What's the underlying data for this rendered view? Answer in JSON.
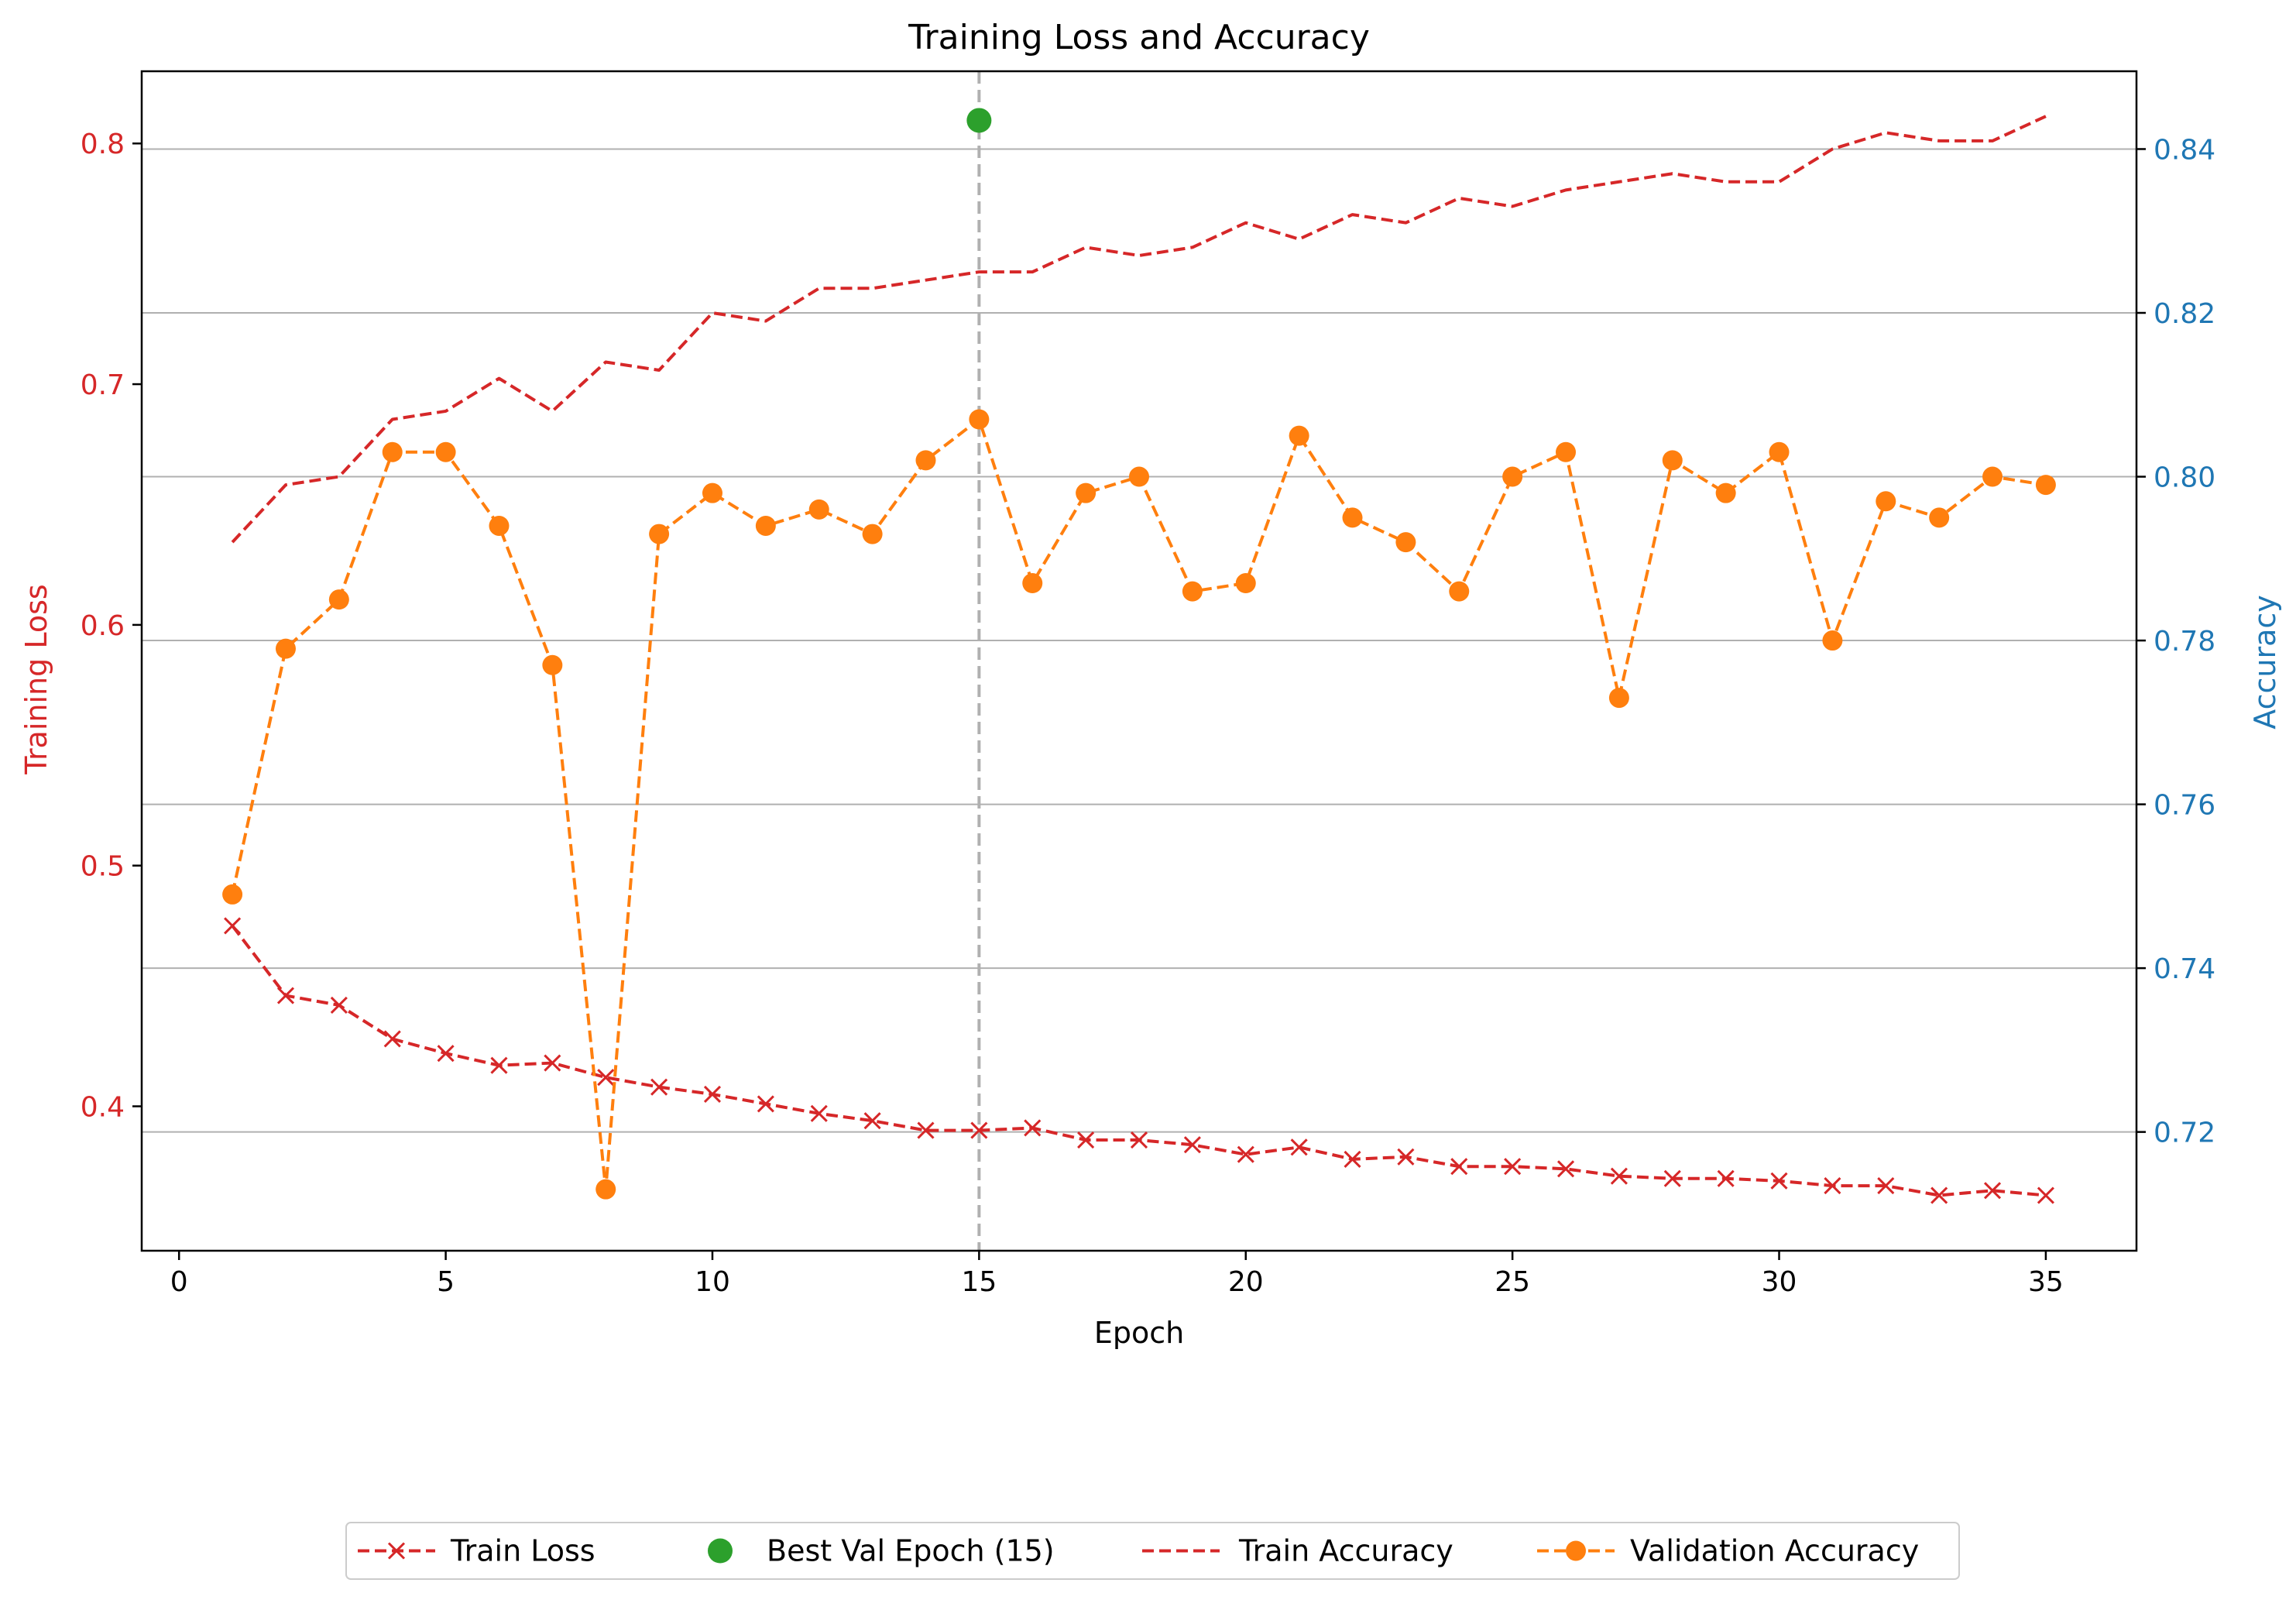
{
  "chart_data": {
    "type": "line",
    "title": "Training Loss and Accuracy",
    "xlabel": "Epoch",
    "ylabel_left": "Training Loss",
    "ylabel_right": "Accuracy",
    "xlim": [
      -0.7,
      36.7
    ],
    "ylim_left": [
      0.34,
      0.83
    ],
    "ylim_right": [
      0.7055,
      0.8495
    ],
    "x_ticks": [
      0,
      5,
      10,
      15,
      20,
      25,
      30,
      35
    ],
    "y_ticks_left": [
      0.4,
      0.5,
      0.6,
      0.7,
      0.8
    ],
    "y_ticks_right": [
      0.72,
      0.74,
      0.76,
      0.78,
      0.8,
      0.82,
      0.84
    ],
    "x_tick_labels": [
      "0",
      "5",
      "10",
      "15",
      "20",
      "25",
      "30",
      "35"
    ],
    "y_tick_labels_left": [
      "0.4",
      "0.5",
      "0.6",
      "0.7",
      "0.8"
    ],
    "y_tick_labels_right": [
      "0.72",
      "0.74",
      "0.76",
      "0.78",
      "0.80",
      "0.82",
      "0.84"
    ],
    "grid": "horizontal on right axis",
    "legend_position": "bottom-center, below plot",
    "x": [
      1,
      2,
      3,
      4,
      5,
      6,
      7,
      8,
      9,
      10,
      11,
      12,
      13,
      14,
      15,
      16,
      17,
      18,
      19,
      20,
      21,
      22,
      23,
      24,
      25,
      26,
      27,
      28,
      29,
      30,
      31,
      32,
      33,
      34,
      35
    ],
    "series": [
      {
        "name": "Train Loss",
        "axis": "left",
        "color": "#d62728",
        "marker": "x",
        "linestyle": "dashed",
        "values": [
          0.475,
          0.446,
          0.442,
          0.428,
          0.422,
          0.417,
          0.418,
          0.412,
          0.408,
          0.405,
          0.401,
          0.397,
          0.394,
          0.39,
          0.39,
          0.391,
          0.386,
          0.386,
          0.384,
          0.38,
          0.383,
          0.378,
          0.379,
          0.375,
          0.375,
          0.374,
          0.371,
          0.37,
          0.37,
          0.369,
          0.367,
          0.367,
          0.363,
          0.365,
          0.363
        ]
      },
      {
        "name": "Train Accuracy",
        "axis": "right",
        "color": "#d62728",
        "marker": "none",
        "linestyle": "dashed",
        "values": [
          0.792,
          0.799,
          0.8,
          0.807,
          0.808,
          0.812,
          0.808,
          0.814,
          0.813,
          0.82,
          0.819,
          0.823,
          0.823,
          0.824,
          0.825,
          0.825,
          0.828,
          0.827,
          0.828,
          0.831,
          0.829,
          0.832,
          0.831,
          0.834,
          0.833,
          0.835,
          0.836,
          0.837,
          0.836,
          0.836,
          0.84,
          0.842,
          0.841,
          0.841,
          0.844
        ]
      },
      {
        "name": "Validation Accuracy",
        "axis": "right",
        "color": "#ff7f0e",
        "marker": "o",
        "linestyle": "dashed",
        "values": [
          0.749,
          0.779,
          0.785,
          0.803,
          0.803,
          0.794,
          0.777,
          0.713,
          0.793,
          0.798,
          0.794,
          0.796,
          0.793,
          0.802,
          0.807,
          0.787,
          0.798,
          0.8,
          0.786,
          0.787,
          0.805,
          0.795,
          0.792,
          0.786,
          0.8,
          0.803,
          0.773,
          0.802,
          0.798,
          0.803,
          0.78,
          0.797,
          0.795,
          0.8,
          0.799
        ]
      }
    ],
    "best_val": {
      "name": "Best Val Epoch (15)",
      "epoch": 15,
      "accuracy": 0.8435,
      "color": "#2ca02c"
    },
    "colors": {
      "left_axis": "#d62728",
      "right_axis": "#1f77b4",
      "grid": "#b0b0b0",
      "vline": "#b0b0b0"
    }
  }
}
